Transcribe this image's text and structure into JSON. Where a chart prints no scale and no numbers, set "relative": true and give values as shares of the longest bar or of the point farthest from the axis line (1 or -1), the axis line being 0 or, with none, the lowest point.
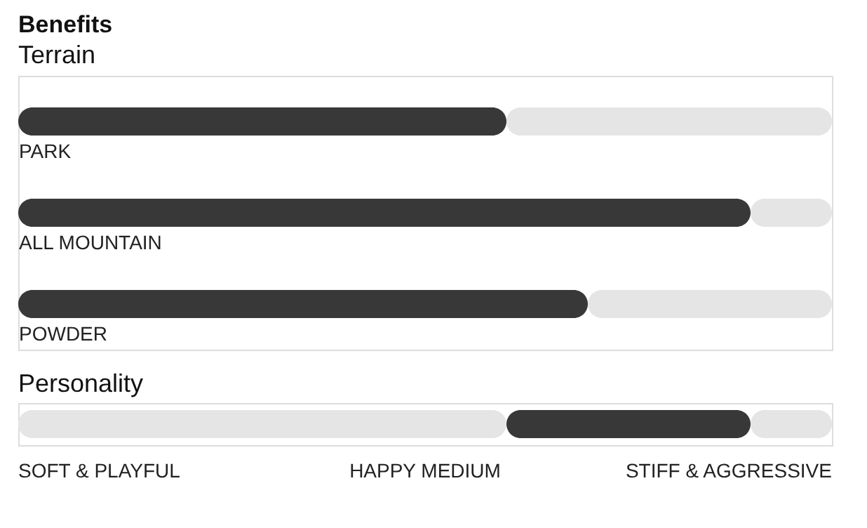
{
  "chart_data": [
    {
      "type": "bar",
      "orientation": "horizontal",
      "stacked": true,
      "relative": true,
      "title": "Benefits",
      "subtitle": "Terrain",
      "categories": [
        "PARK",
        "ALL MOUNTAIN",
        "POWDER"
      ],
      "series": [
        {
          "color": "#383838",
          "values": [
            0.6,
            0.9,
            0.7
          ]
        },
        {
          "color": "#e5e5e5",
          "values": [
            0.4,
            0.1,
            0.3
          ]
        }
      ]
    },
    {
      "type": "bar",
      "orientation": "horizontal",
      "stacked": true,
      "relative": true,
      "title": "Personality",
      "categories": [
        null
      ],
      "series": [
        {
          "color": "#e5e5e5",
          "values": [
            0.6
          ]
        },
        {
          "color": "#383838",
          "values": [
            0.3
          ]
        },
        {
          "color": "#e5e5e5",
          "values": [
            0.1
          ]
        }
      ],
      "annotations": [
        "SOFT & PLAYFUL",
        "HAPPY MEDIUM",
        "STIFF & AGGRESSIVE"
      ]
    }
  ]
}
